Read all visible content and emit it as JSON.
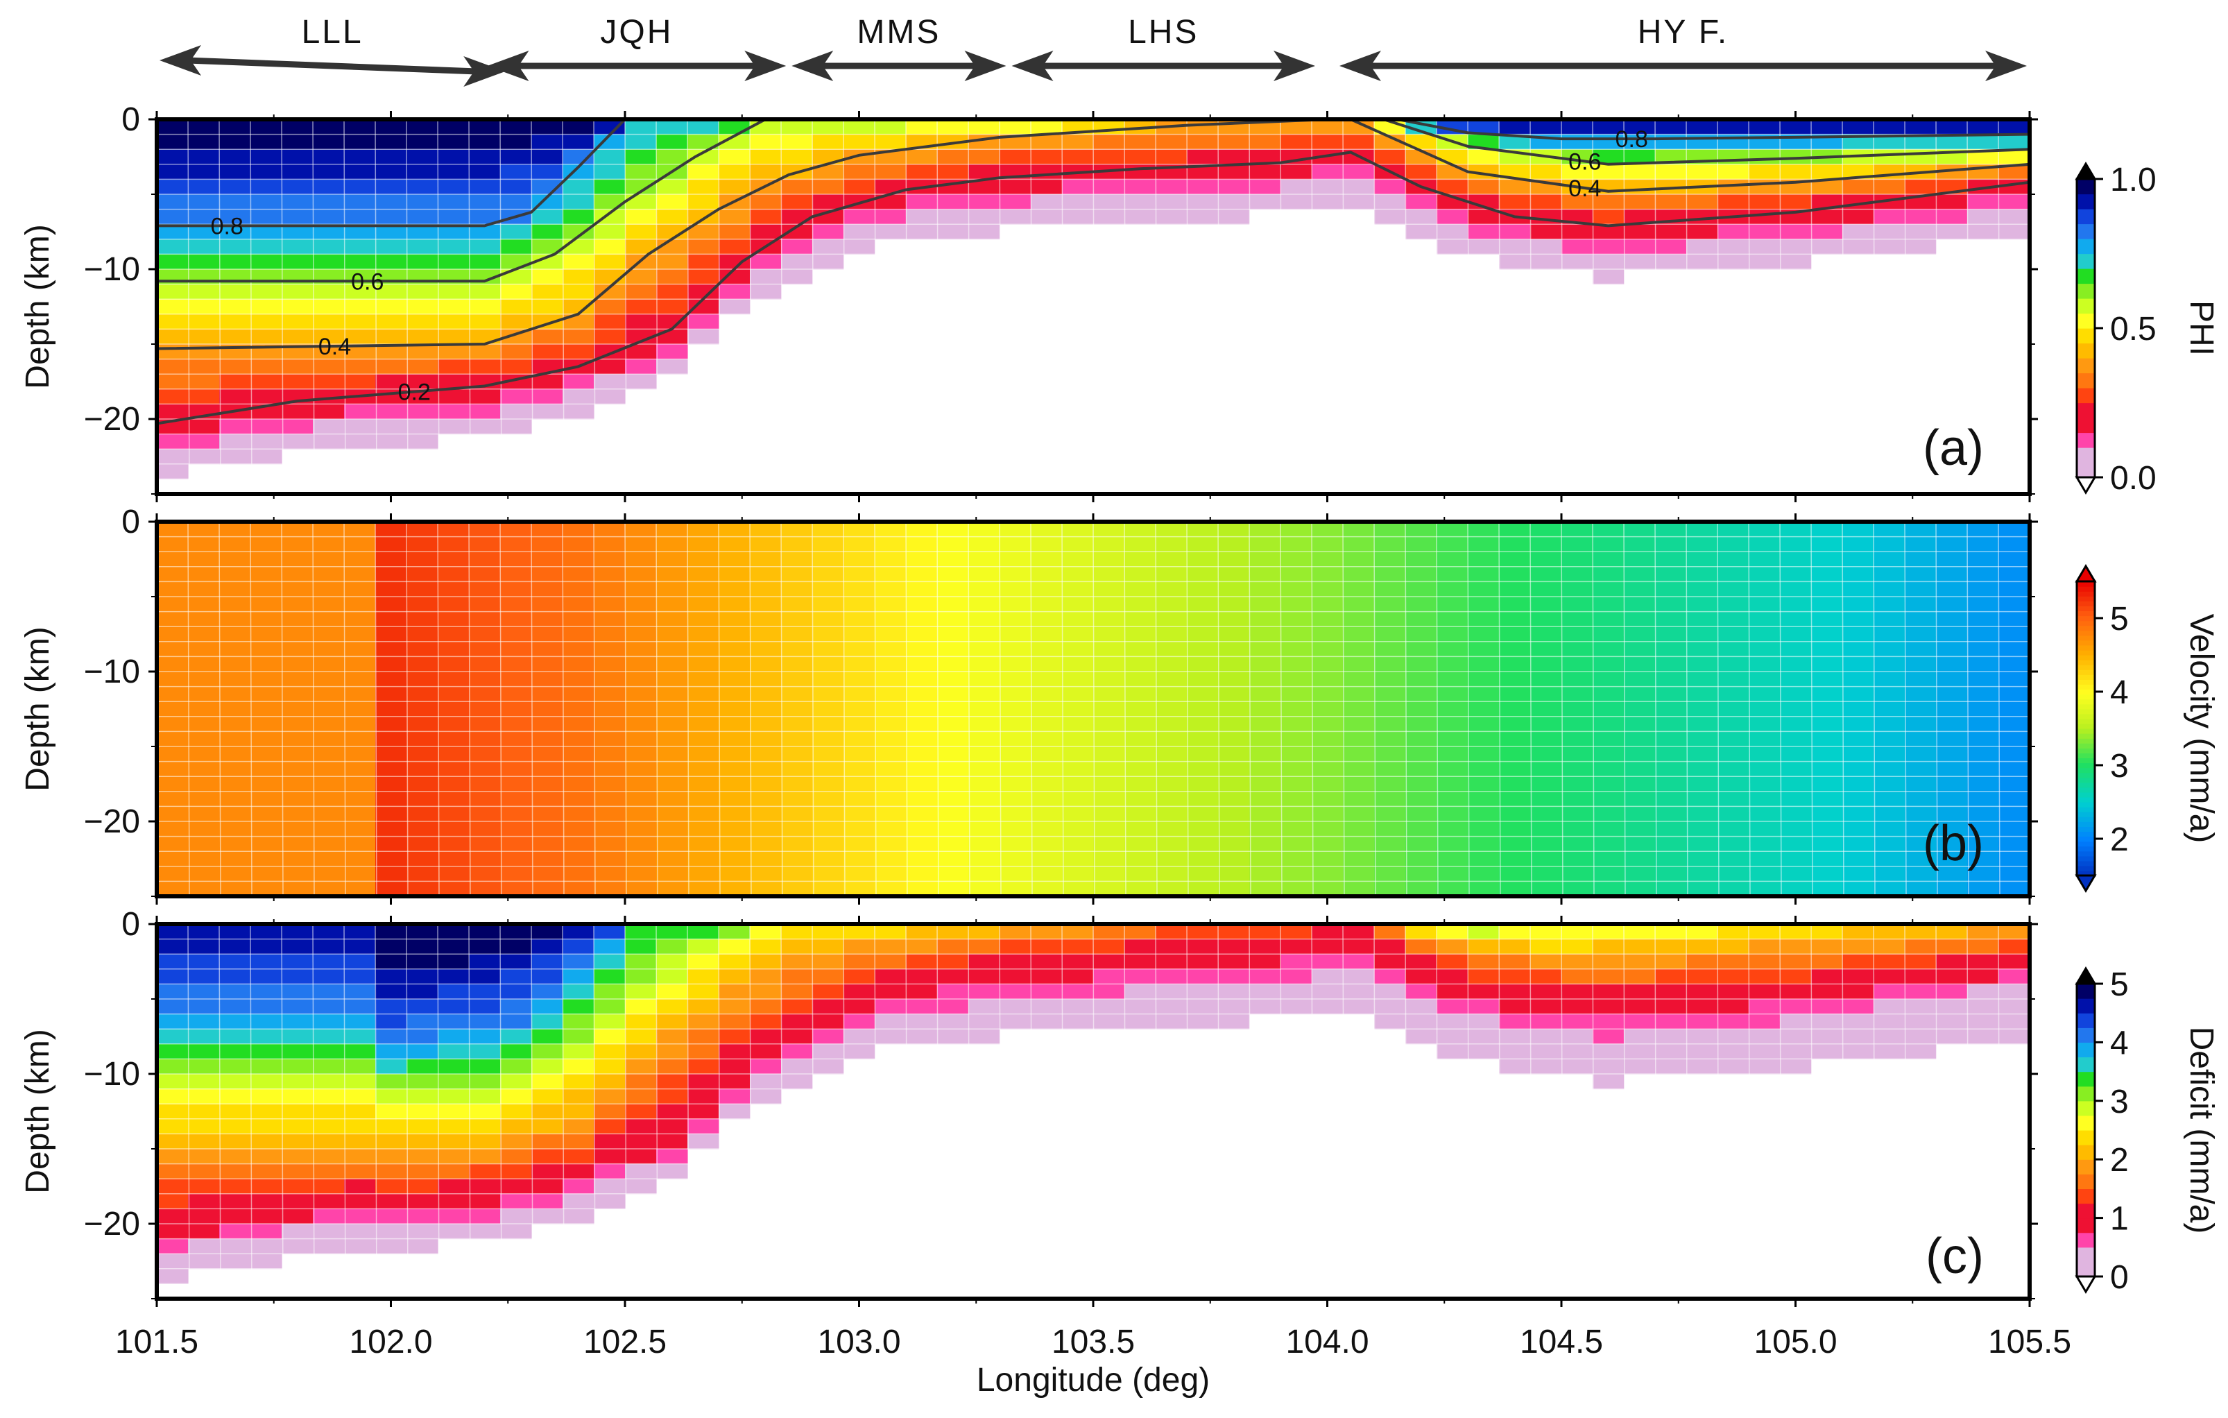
{
  "segments": [
    {
      "label": "LLL",
      "from": 101.5,
      "to": 102.25
    },
    {
      "label": "JQH",
      "from": 102.2,
      "to": 102.85
    },
    {
      "label": "MMS",
      "from": 102.85,
      "to": 103.32
    },
    {
      "label": "LHS",
      "from": 103.32,
      "to": 103.98
    },
    {
      "label": "HY F.",
      "from": 104.02,
      "to": 105.5
    }
  ],
  "xaxis": {
    "label": "Longitude (deg)",
    "ticks": [
      101.5,
      102.0,
      102.5,
      103.0,
      103.5,
      104.0,
      104.5,
      105.0,
      105.5
    ],
    "tick_labels": [
      "101.5",
      "102.0",
      "102.5",
      "103.0",
      "103.5",
      "104.0",
      "104.5",
      "105.0",
      "105.5"
    ],
    "range": [
      101.5,
      105.5
    ]
  },
  "chart_data": [
    {
      "type": "heatmap",
      "panel_label": "(a)",
      "ylabel": "Depth (km)",
      "yticks": [
        0,
        -10,
        -20
      ],
      "ytick_labels": [
        "0",
        "−10",
        "−20"
      ],
      "xlim": [
        101.5,
        105.5
      ],
      "ylim": [
        -25,
        0
      ],
      "colorbar": {
        "label": "PHI",
        "range": [
          0.0,
          1.0
        ],
        "ticks": [
          0.0,
          0.5,
          1.0
        ],
        "tick_labels": [
          "0.0",
          "0.5",
          "1.0"
        ]
      },
      "grid": true,
      "contour_levels": [
        "0.8",
        "0.6",
        "0.4",
        "0.2"
      ],
      "contours": [
        {
          "level": 0.8,
          "x": [
            101.5,
            102.2,
            102.3,
            102.4,
            102.5
          ],
          "y": [
            -7.1,
            -7.1,
            -6.2,
            -3.2,
            0
          ]
        },
        {
          "level": 0.8,
          "x": [
            104.15,
            104.3,
            104.5,
            104.7,
            105.0,
            105.5
          ],
          "y": [
            0,
            -0.9,
            -1.3,
            -1.3,
            -1.2,
            -1.0
          ]
        },
        {
          "level": 0.6,
          "x": [
            101.5,
            102.2,
            102.35,
            102.5,
            102.65,
            102.8
          ],
          "y": [
            -10.8,
            -10.8,
            -9.0,
            -5.5,
            -2.5,
            0
          ]
        },
        {
          "level": 0.6,
          "x": [
            104.12,
            104.3,
            104.6,
            105.0,
            105.5
          ],
          "y": [
            0,
            -1.8,
            -3.0,
            -2.6,
            -2.0
          ]
        },
        {
          "level": 0.4,
          "x": [
            101.5,
            102.2,
            102.4,
            102.55,
            102.7,
            102.85,
            103.0,
            103.3,
            103.7,
            104.0
          ],
          "y": [
            -15.3,
            -15.0,
            -13.0,
            -9.0,
            -6.0,
            -3.7,
            -2.4,
            -1.2,
            -0.4,
            0
          ]
        },
        {
          "level": 0.4,
          "x": [
            104.05,
            104.3,
            104.6,
            105.0,
            105.5
          ],
          "y": [
            0,
            -3.5,
            -4.8,
            -4.2,
            -3.0
          ]
        },
        {
          "level": 0.2,
          "x": [
            101.5,
            101.8,
            102.2,
            102.4,
            102.6,
            102.75,
            102.9,
            103.1,
            103.3,
            103.6,
            103.9,
            104.05,
            104.2,
            104.4,
            104.6,
            105.0,
            105.5
          ],
          "y": [
            -20.3,
            -18.8,
            -17.8,
            -16.5,
            -14.0,
            -9.5,
            -6.5,
            -4.7,
            -3.9,
            -3.3,
            -2.9,
            -2.2,
            -4.5,
            -6.5,
            -7.1,
            -6.2,
            -4.2
          ]
        }
      ]
    },
    {
      "type": "heatmap",
      "panel_label": "(b)",
      "ylabel": "Depth (km)",
      "yticks": [
        0,
        -10,
        -20
      ],
      "ytick_labels": [
        "0",
        "−10",
        "−20"
      ],
      "xlim": [
        101.5,
        105.5
      ],
      "ylim": [
        -25,
        0
      ],
      "colorbar": {
        "label": "Velocity (mm/a)",
        "range": [
          1.5,
          5.5
        ],
        "ticks": [
          2,
          3,
          4,
          5
        ],
        "tick_labels": [
          "2",
          "3",
          "4",
          "5"
        ]
      },
      "grid": true,
      "velocity_profile": {
        "x": [
          101.5,
          101.95,
          102.0,
          102.4,
          102.8,
          103.2,
          103.6,
          104.0,
          104.3,
          104.7,
          105.1,
          105.5
        ],
        "v": [
          4.75,
          4.75,
          5.25,
          4.9,
          4.4,
          3.95,
          3.65,
          3.35,
          3.1,
          2.8,
          2.5,
          2.05
        ]
      }
    },
    {
      "type": "heatmap",
      "panel_label": "(c)",
      "ylabel": "Depth (km)",
      "yticks": [
        0,
        -10,
        -20
      ],
      "ytick_labels": [
        "0",
        "−10",
        "−20"
      ],
      "xlim": [
        101.5,
        105.5
      ],
      "ylim": [
        -25,
        0
      ],
      "colorbar": {
        "label": "Deficit (mm/a)",
        "range": [
          0,
          5
        ],
        "ticks": [
          0,
          1,
          2,
          3,
          4,
          5
        ],
        "tick_labels": [
          "0",
          "1",
          "2",
          "3",
          "4",
          "5"
        ]
      },
      "grid": true
    }
  ],
  "xlabel": "Longitude (deg)"
}
